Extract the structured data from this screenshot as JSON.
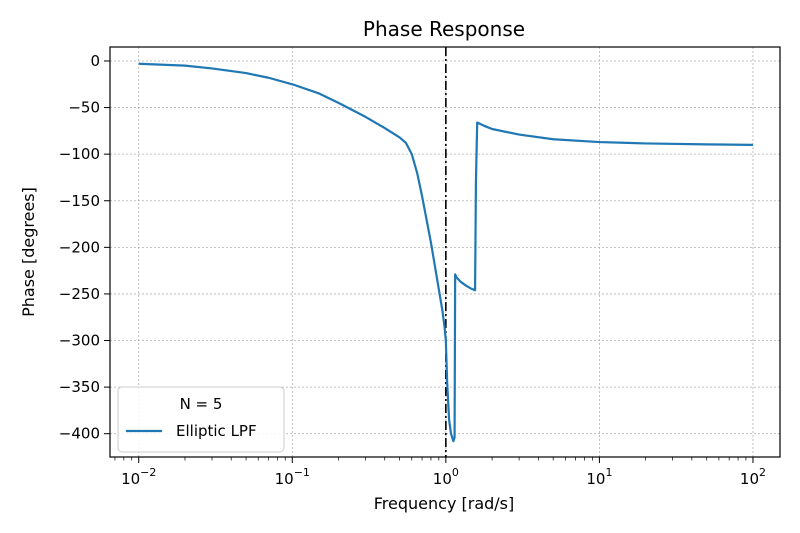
{
  "chart_data": {
    "type": "line",
    "title": "Phase Response",
    "xlabel": "Frequency [rad/s]",
    "ylabel": "Phase [degrees]",
    "x_scale": "log",
    "xlim": [
      0.0065,
      150
    ],
    "ylim": [
      -425,
      15
    ],
    "grid": true,
    "x_ticks": [
      {
        "value": 0.01,
        "base": "10",
        "exp": "−2"
      },
      {
        "value": 0.1,
        "base": "10",
        "exp": "−1"
      },
      {
        "value": 1,
        "base": "10",
        "exp": "0"
      },
      {
        "value": 10,
        "base": "10",
        "exp": "1"
      },
      {
        "value": 100,
        "base": "10",
        "exp": "2"
      }
    ],
    "y_ticks": [
      {
        "value": 0,
        "label": "0"
      },
      {
        "value": -50,
        "label": "−50"
      },
      {
        "value": -100,
        "label": "−100"
      },
      {
        "value": -150,
        "label": "−150"
      },
      {
        "value": -200,
        "label": "−200"
      },
      {
        "value": -250,
        "label": "−250"
      },
      {
        "value": -300,
        "label": "−300"
      },
      {
        "value": -350,
        "label": "−350"
      },
      {
        "value": -400,
        "label": "−400"
      }
    ],
    "vline": {
      "x": 1,
      "style": "dash-dot",
      "color": "#000000"
    },
    "legend": {
      "title": "N = 5",
      "position": "lower-left"
    },
    "series": [
      {
        "name": "Elliptic LPF",
        "color": "#1f77b4",
        "x": [
          0.01,
          0.02,
          0.03,
          0.05,
          0.07,
          0.1,
          0.15,
          0.2,
          0.3,
          0.4,
          0.5,
          0.55,
          0.6,
          0.65,
          0.7,
          0.8,
          0.9,
          0.95,
          0.98,
          1.0,
          1.02,
          1.05,
          1.08,
          1.12,
          1.14,
          1.15,
          1.17,
          1.25,
          1.35,
          1.45,
          1.55,
          1.57,
          1.6,
          1.8,
          2,
          3,
          5,
          10,
          20,
          50,
          100
        ],
        "y": [
          -3,
          -5,
          -8,
          -13,
          -18,
          -25,
          -35,
          -45,
          -60,
          -72,
          -82,
          -88,
          -100,
          -120,
          -145,
          -195,
          -245,
          -268,
          -285,
          -300,
          -345,
          -385,
          -400,
          -408,
          -404,
          -229,
          -232,
          -237,
          -241,
          -244,
          -246,
          -130,
          -66,
          -70,
          -73,
          -79,
          -84,
          -87,
          -88.5,
          -89.5,
          -90
        ]
      }
    ]
  }
}
